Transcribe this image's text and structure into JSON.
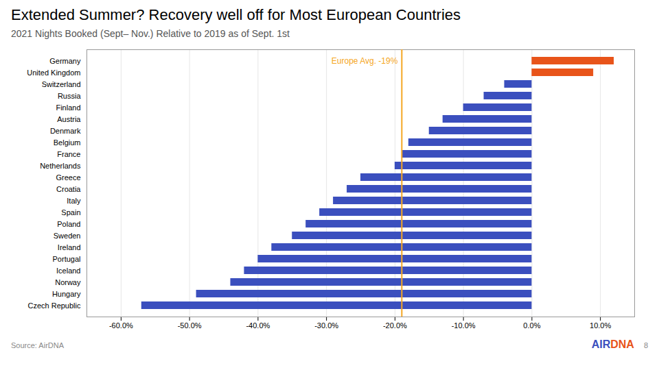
{
  "chart_data": {
    "type": "bar",
    "orientation": "horizontal",
    "title": "Extended Summer? Recovery well off for Most European Countries",
    "subtitle": "2021 Nights Booked (Sept– Nov.) Relative to 2019 as of Sept. 1st",
    "categories": [
      "Germany",
      "United Kingdom",
      "Switzerland",
      "Russia",
      "Finland",
      "Austria",
      "Denmark",
      "Belgium",
      "France",
      "Netherlands",
      "Greece",
      "Croatia",
      "Italy",
      "Spain",
      "Poland",
      "Sweden",
      "Ireland",
      "Portugal",
      "Iceland",
      "Norway",
      "Hungary",
      "Czech Republic"
    ],
    "values": [
      0.12,
      0.09,
      -0.04,
      -0.07,
      -0.1,
      -0.13,
      -0.15,
      -0.18,
      -0.19,
      -0.2,
      -0.25,
      -0.27,
      -0.29,
      -0.31,
      -0.33,
      -0.35,
      -0.38,
      -0.4,
      -0.42,
      -0.44,
      -0.49,
      -0.57
    ],
    "colors": [
      "#E8541A",
      "#E8541A",
      "#3B4FBE",
      "#3B4FBE",
      "#3B4FBE",
      "#3B4FBE",
      "#3B4FBE",
      "#3B4FBE",
      "#3B4FBE",
      "#3B4FBE",
      "#3B4FBE",
      "#3B4FBE",
      "#3B4FBE",
      "#3B4FBE",
      "#3B4FBE",
      "#3B4FBE",
      "#3B4FBE",
      "#3B4FBE",
      "#3B4FBE",
      "#3B4FBE",
      "#3B4FBE",
      "#3B4FBE"
    ],
    "xlim": [
      -0.65,
      0.15
    ],
    "xticks": [
      {
        "value": -0.6,
        "label": "-60.0%"
      },
      {
        "value": -0.5,
        "label": "-50.0%"
      },
      {
        "value": -0.4,
        "label": "-40.0%"
      },
      {
        "value": -0.3,
        "label": "-30.0%"
      },
      {
        "value": -0.2,
        "label": "-20.0%"
      },
      {
        "value": -0.1,
        "label": "-10.0%"
      },
      {
        "value": 0.0,
        "label": "0.0%"
      },
      {
        "value": 0.1,
        "label": "10.0%"
      }
    ],
    "grid": true,
    "annotations": [
      {
        "text": "Europe Avg. -19%",
        "x": -0.19,
        "color": "#F5A623"
      },
      {
        "text": "Source: AirDNA"
      },
      {
        "text": "AIR",
        "color": "#3B4FBE"
      },
      {
        "text": "DNA",
        "color": "#E8541A"
      },
      {
        "text": "8"
      }
    ]
  }
}
